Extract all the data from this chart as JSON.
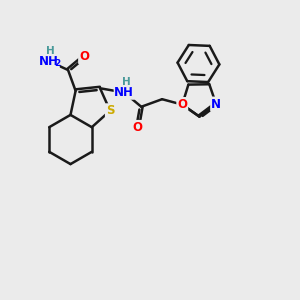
{
  "background_color": "#ebebeb",
  "bond_color": "#1a1a1a",
  "bond_width": 1.8,
  "atom_colors": {
    "N": "#0000ff",
    "O": "#ff0000",
    "S": "#ccaa00",
    "H": "#4a9a9a",
    "C": "#1a1a1a"
  },
  "font_size": 8.5,
  "figsize": [
    3.0,
    3.0
  ],
  "dpi": 100
}
